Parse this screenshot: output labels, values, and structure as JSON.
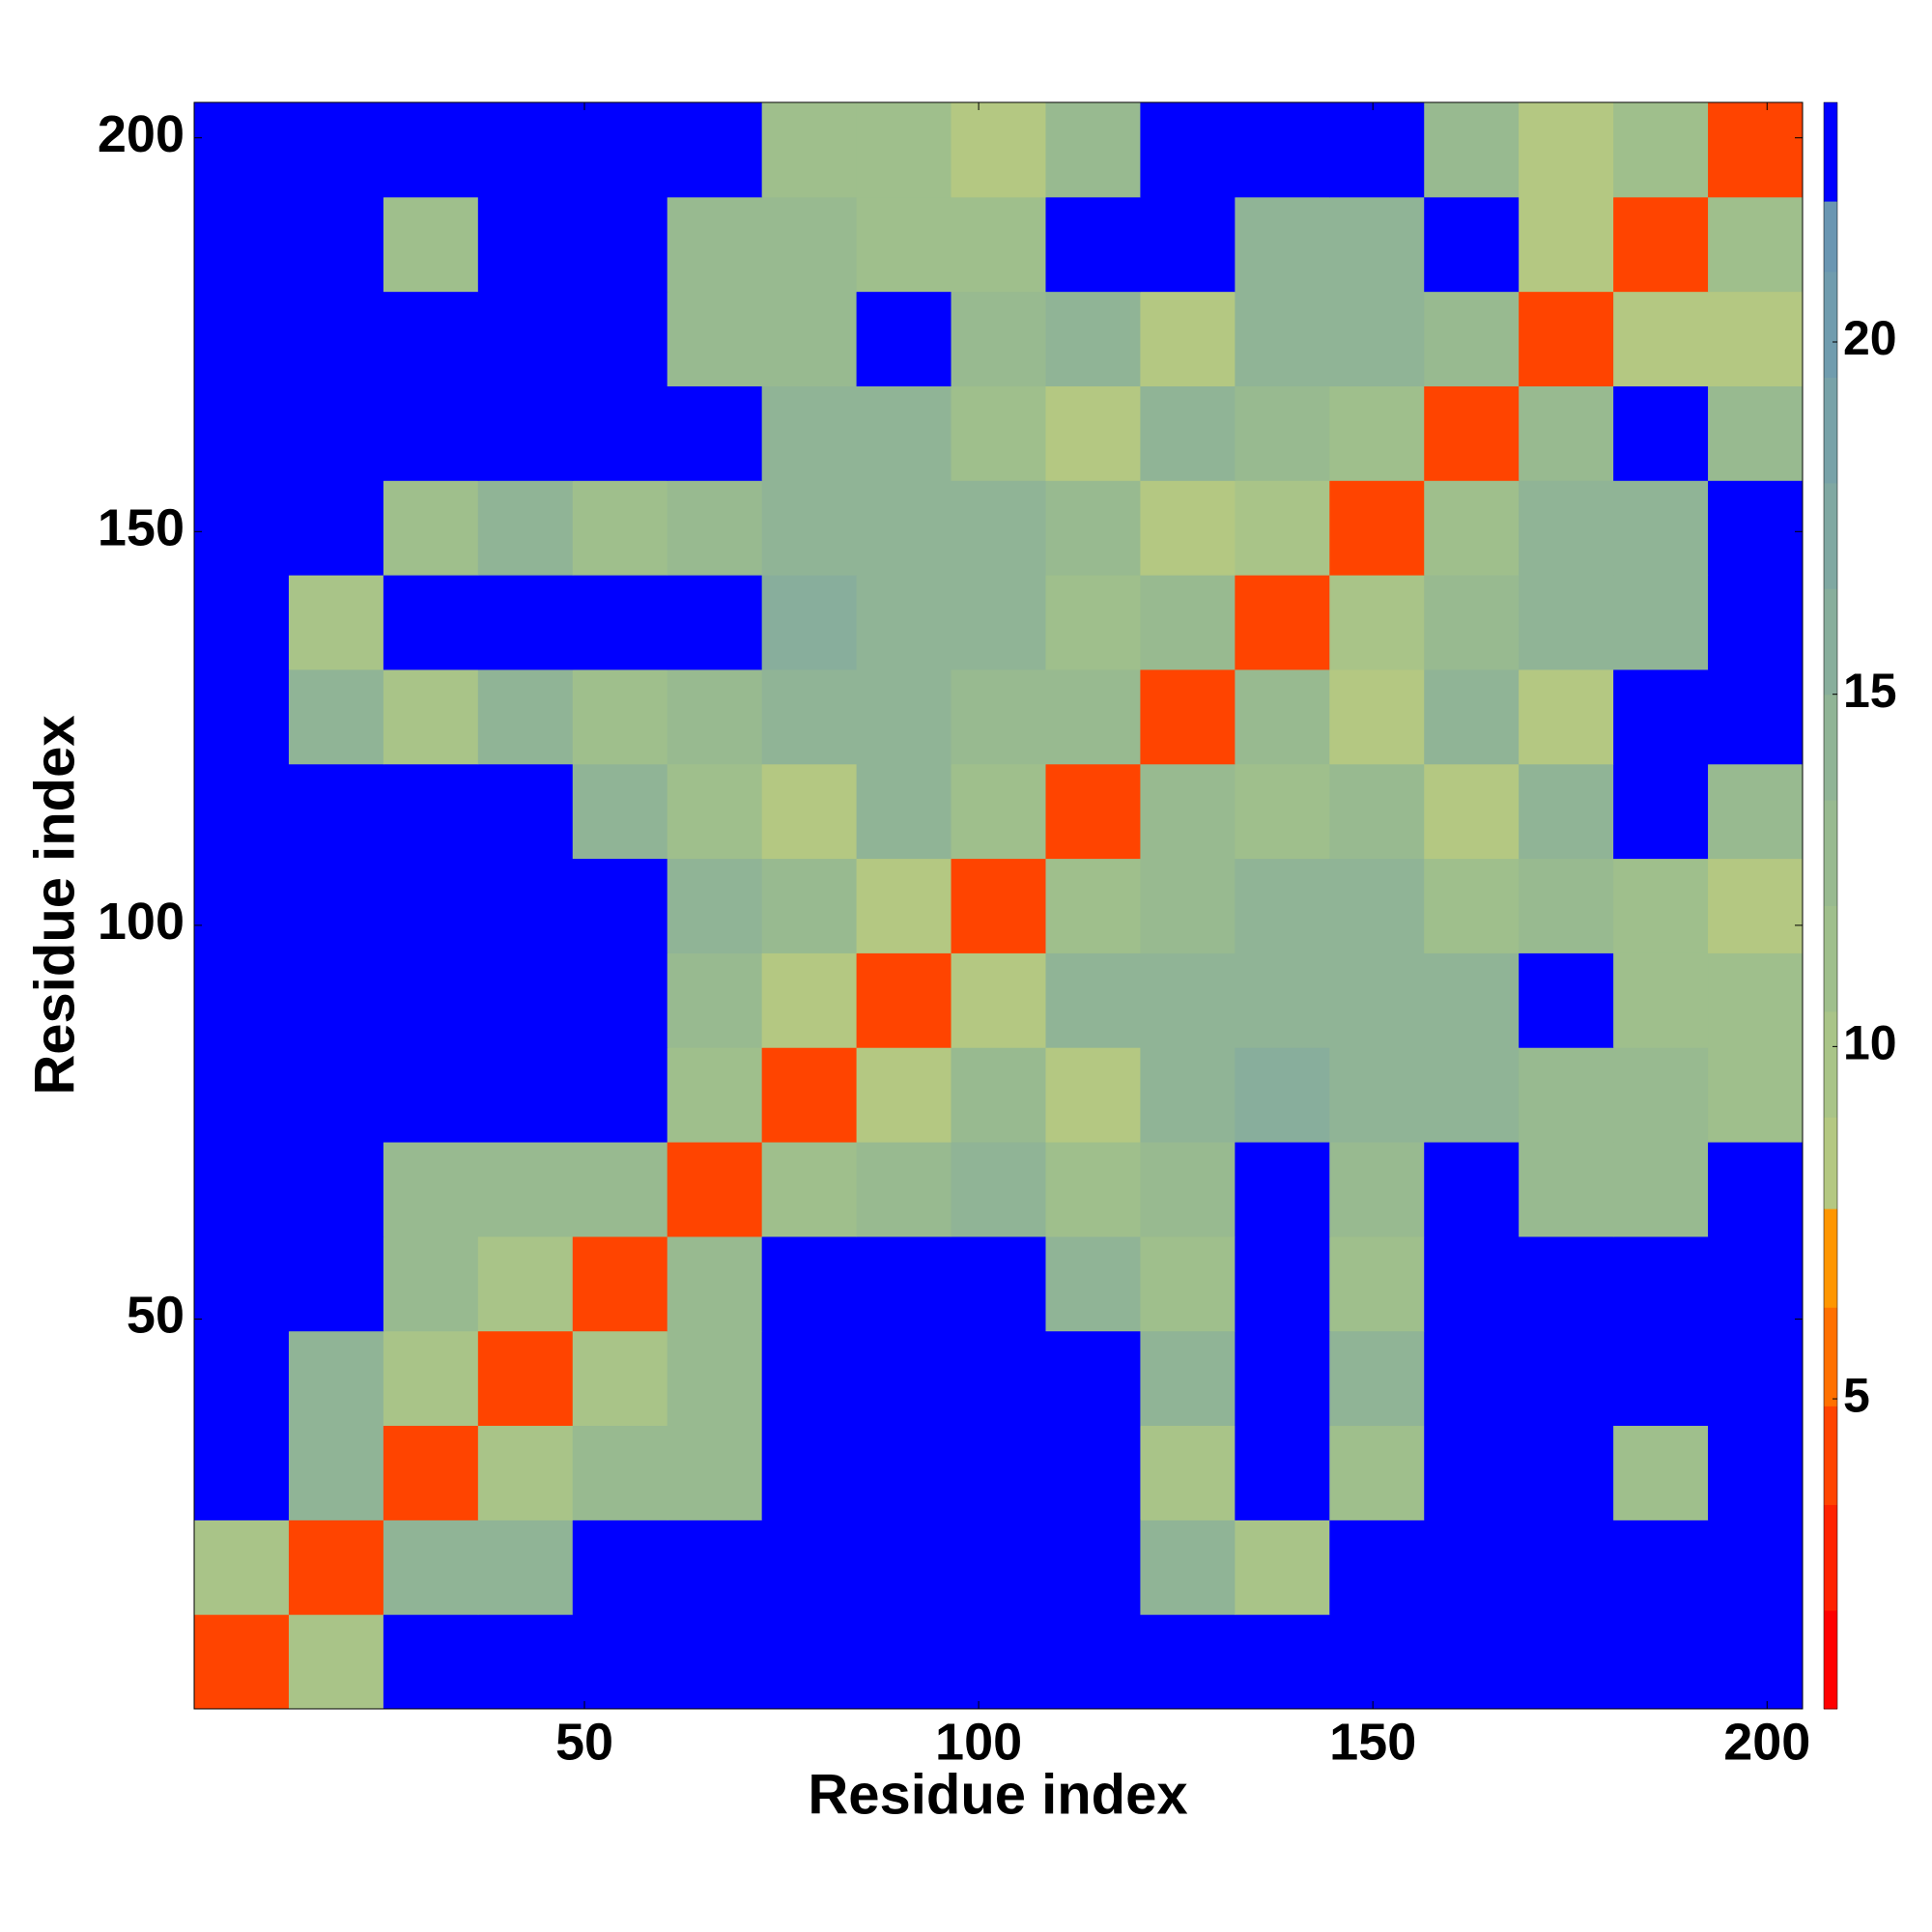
{
  "chart_data": {
    "type": "heatmap",
    "xlabel": "Residue index",
    "ylabel": "Residue index",
    "xlim": [
      0.5,
      204.5
    ],
    "ylim": [
      0.5,
      204.5
    ],
    "xticks": [
      50,
      100,
      150,
      200
    ],
    "yticks": [
      50,
      100,
      150,
      200
    ],
    "x_bins": [
      0.5,
      12.5,
      24.5,
      36.5,
      48.5,
      60.5,
      72.5,
      84.5,
      96.5,
      108.5,
      120.5,
      132.5,
      144.5,
      156.5,
      168.5,
      180.5,
      192.5,
      204.5
    ],
    "y_bins": [
      0.5,
      12.5,
      24.5,
      36.5,
      48.5,
      60.5,
      72.5,
      84.5,
      96.5,
      108.5,
      120.5,
      132.5,
      144.5,
      156.5,
      168.5,
      180.5,
      192.5,
      204.5
    ],
    "values": [
      [
        4,
        10,
        23,
        23,
        23,
        23,
        23,
        23,
        23,
        23,
        23,
        23,
        23,
        23,
        23,
        23,
        23
      ],
      [
        10,
        4,
        14,
        14,
        23,
        23,
        23,
        23,
        23,
        23,
        14,
        10,
        23,
        23,
        23,
        23,
        23
      ],
      [
        23,
        14,
        4,
        10,
        13,
        13,
        23,
        23,
        23,
        23,
        10,
        23,
        12,
        23,
        23,
        12,
        23
      ],
      [
        23,
        14,
        10,
        4,
        10,
        13,
        23,
        23,
        23,
        23,
        15,
        23,
        15,
        23,
        23,
        23,
        23
      ],
      [
        23,
        23,
        13,
        10,
        4,
        13,
        23,
        23,
        23,
        15,
        12,
        23,
        11,
        23,
        23,
        23,
        23
      ],
      [
        23,
        23,
        13,
        13,
        13,
        4,
        11,
        13,
        14,
        12,
        13,
        23,
        13,
        23,
        13,
        13,
        23
      ],
      [
        23,
        23,
        23,
        23,
        23,
        11,
        4,
        9,
        13,
        8,
        15,
        16,
        14,
        14,
        13,
        13,
        11
      ],
      [
        23,
        23,
        23,
        23,
        23,
        13,
        9,
        4,
        9,
        14,
        14,
        15,
        14,
        14,
        23,
        12,
        12
      ],
      [
        23,
        23,
        23,
        23,
        23,
        14,
        13,
        9,
        4,
        12,
        13,
        15,
        15,
        12,
        13,
        12,
        8
      ],
      [
        23,
        23,
        23,
        23,
        15,
        12,
        8,
        14,
        12,
        4,
        13,
        12,
        13,
        8,
        14,
        23,
        13
      ],
      [
        23,
        14,
        10,
        15,
        12,
        13,
        15,
        14,
        13,
        13,
        4,
        13,
        8,
        14,
        9,
        23,
        23
      ],
      [
        23,
        10,
        23,
        23,
        23,
        23,
        16,
        15,
        15,
        12,
        13,
        4,
        10,
        13,
        14,
        15,
        23
      ],
      [
        23,
        23,
        12,
        15,
        11,
        13,
        14,
        14,
        15,
        13,
        8,
        10,
        4,
        12,
        14,
        14,
        23
      ],
      [
        23,
        23,
        23,
        23,
        23,
        23,
        14,
        14,
        12,
        8,
        14,
        13,
        12,
        4,
        13,
        23,
        13
      ],
      [
        23,
        23,
        23,
        23,
        23,
        13,
        13,
        23,
        13,
        14,
        9,
        14,
        14,
        13,
        4,
        9,
        8
      ],
      [
        23,
        23,
        12,
        23,
        23,
        13,
        13,
        12,
        12,
        23,
        23,
        15,
        14,
        23,
        9,
        4,
        11
      ],
      [
        23,
        23,
        23,
        23,
        23,
        23,
        11,
        12,
        8,
        13,
        23,
        23,
        23,
        13,
        8,
        11,
        4
      ]
    ],
    "colorbar": {
      "lim": [
        0.6,
        23.4
      ],
      "ticks": [
        5,
        10,
        15,
        20
      ],
      "bounds": [
        0.6,
        2,
        3.5,
        4.9,
        6.3,
        7.7,
        9,
        10.5,
        12,
        13.5,
        15,
        16.5,
        18,
        19.5,
        21,
        22,
        23.4
      ],
      "colors": [
        "#ff0000",
        "#ff2200",
        "#ff4400",
        "#ff7000",
        "#ff9600",
        "#b4c882",
        "#a9c488",
        "#9fbf8c",
        "#98ba90",
        "#90b496",
        "#88ae9c",
        "#80a8a2",
        "#78a2a8",
        "#709cae",
        "#6a96b2",
        "#0000ff"
      ]
    }
  }
}
